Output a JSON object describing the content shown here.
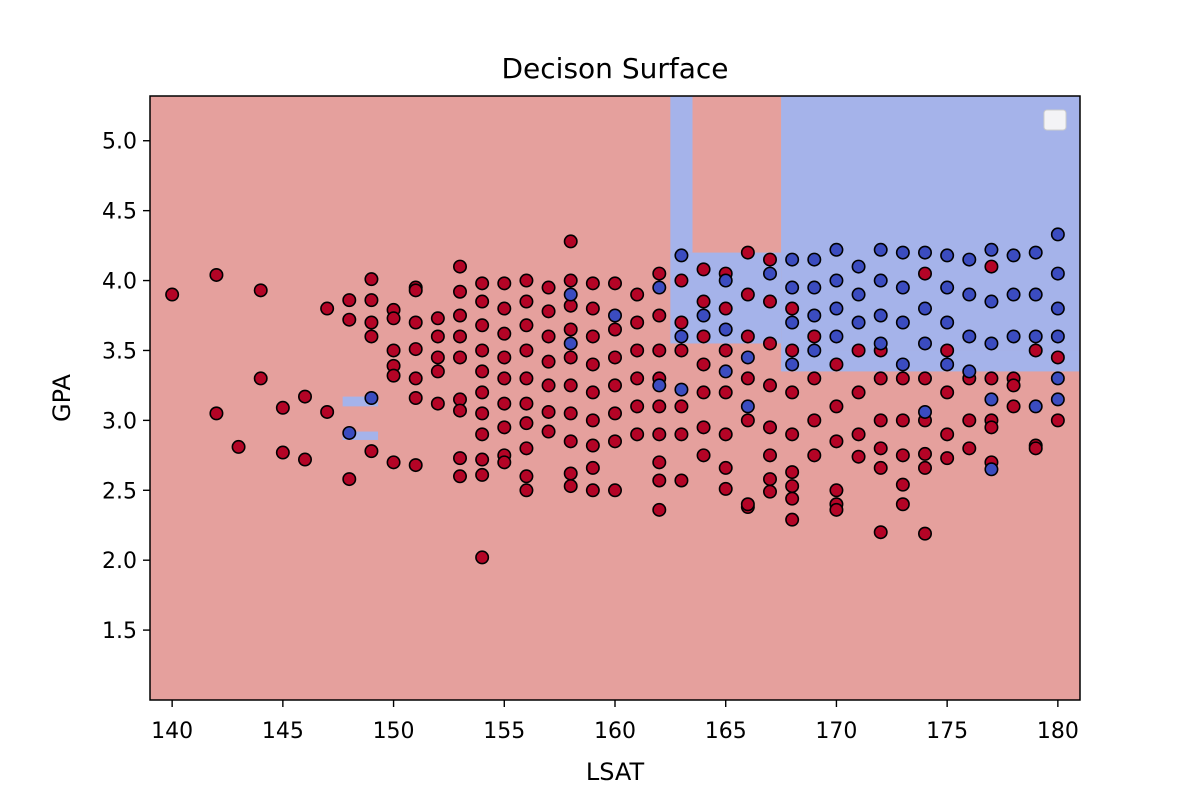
{
  "chart_data": {
    "type": "scatter",
    "title": "Decison Surface",
    "xlabel": "LSAT",
    "ylabel": "GPA",
    "xlim": [
      139,
      181
    ],
    "ylim": [
      1.0,
      5.32
    ],
    "xticks": [
      140,
      145,
      150,
      155,
      160,
      165,
      170,
      175,
      180
    ],
    "yticks": [
      1.5,
      2.0,
      2.5,
      3.0,
      3.5,
      4.0,
      4.5,
      5.0
    ],
    "xtick_labels": [
      "140",
      "145",
      "150",
      "155",
      "160",
      "165",
      "170",
      "175",
      "180"
    ],
    "ytick_labels": [
      "1.5",
      "2.0",
      "2.5",
      "3.0",
      "3.5",
      "4.0",
      "4.5",
      "5.0"
    ],
    "grid": false,
    "legend": {
      "placement": "top-right",
      "entries": []
    },
    "colors": {
      "region_negative": "#e5a09d",
      "region_positive": "#a5b3ea",
      "point_negative": "#b40426",
      "point_positive": "#3b4cc0",
      "point_edge": "#000000"
    },
    "decision_regions": [
      {
        "class": "positive",
        "x": [
          167.5,
          181
        ],
        "y": [
          3.5,
          5.32
        ]
      },
      {
        "class": "positive",
        "x": [
          167.5,
          181
        ],
        "y": [
          3.35,
          3.5
        ]
      },
      {
        "class": "positive",
        "x": [
          162.5,
          163.5
        ],
        "y": [
          4.2,
          5.32
        ]
      },
      {
        "class": "positive",
        "x": [
          147.7,
          149.3
        ],
        "y": [
          3.1,
          3.17
        ]
      },
      {
        "class": "positive",
        "x": [
          147.7,
          149.3
        ],
        "y": [
          2.86,
          2.92
        ]
      },
      {
        "class": "positive",
        "x": [
          162.5,
          167.5
        ],
        "y": [
          3.55,
          4.2
        ]
      }
    ],
    "series": [
      {
        "class": "negative",
        "points": [
          [
            140,
            3.9
          ],
          [
            142,
            4.04
          ],
          [
            142,
            3.05
          ],
          [
            143,
            2.81
          ],
          [
            144,
            3.93
          ],
          [
            144,
            3.3
          ],
          [
            145,
            3.09
          ],
          [
            145,
            2.77
          ],
          [
            146,
            3.17
          ],
          [
            146,
            2.72
          ],
          [
            147,
            3.8
          ],
          [
            147,
            3.06
          ],
          [
            148,
            3.86
          ],
          [
            148,
            3.72
          ],
          [
            148,
            2.58
          ],
          [
            149,
            4.01
          ],
          [
            149,
            3.86
          ],
          [
            149,
            3.7
          ],
          [
            149,
            3.6
          ],
          [
            149,
            2.78
          ],
          [
            150,
            3.79
          ],
          [
            150,
            3.73
          ],
          [
            150,
            3.5
          ],
          [
            150,
            3.39
          ],
          [
            150,
            3.32
          ],
          [
            150,
            2.7
          ],
          [
            151,
            3.95
          ],
          [
            151,
            3.93
          ],
          [
            151,
            3.7
          ],
          [
            151,
            3.51
          ],
          [
            151,
            3.3
          ],
          [
            151,
            3.16
          ],
          [
            151,
            2.68
          ],
          [
            152,
            3.73
          ],
          [
            152,
            3.6
          ],
          [
            152,
            3.45
          ],
          [
            152,
            3.35
          ],
          [
            152,
            3.12
          ],
          [
            153,
            4.1
          ],
          [
            153,
            3.92
          ],
          [
            153,
            3.75
          ],
          [
            153,
            3.6
          ],
          [
            153,
            3.45
          ],
          [
            153,
            3.15
          ],
          [
            153,
            3.07
          ],
          [
            153,
            2.73
          ],
          [
            153,
            2.6
          ],
          [
            154,
            3.98
          ],
          [
            154,
            3.85
          ],
          [
            154,
            3.68
          ],
          [
            154,
            3.5
          ],
          [
            154,
            3.35
          ],
          [
            154,
            3.2
          ],
          [
            154,
            3.05
          ],
          [
            154,
            2.9
          ],
          [
            154,
            2.72
          ],
          [
            154,
            2.61
          ],
          [
            154,
            2.02
          ],
          [
            155,
            3.98
          ],
          [
            155,
            3.8
          ],
          [
            155,
            3.62
          ],
          [
            155,
            3.45
          ],
          [
            155,
            3.3
          ],
          [
            155,
            3.12
          ],
          [
            155,
            2.95
          ],
          [
            155,
            2.75
          ],
          [
            155,
            2.7
          ],
          [
            156,
            4.0
          ],
          [
            156,
            3.85
          ],
          [
            156,
            3.68
          ],
          [
            156,
            3.5
          ],
          [
            156,
            3.3
          ],
          [
            156,
            3.12
          ],
          [
            156,
            2.98
          ],
          [
            156,
            2.8
          ],
          [
            156,
            2.6
          ],
          [
            156,
            2.5
          ],
          [
            157,
            3.95
          ],
          [
            157,
            3.78
          ],
          [
            157,
            3.6
          ],
          [
            157,
            3.42
          ],
          [
            157,
            3.25
          ],
          [
            157,
            3.06
          ],
          [
            157,
            2.92
          ],
          [
            158,
            4.28
          ],
          [
            158,
            4.0
          ],
          [
            158,
            3.82
          ],
          [
            158,
            3.65
          ],
          [
            158,
            3.45
          ],
          [
            158,
            3.25
          ],
          [
            158,
            3.05
          ],
          [
            158,
            2.85
          ],
          [
            158,
            2.62
          ],
          [
            158,
            2.53
          ],
          [
            159,
            3.98
          ],
          [
            159,
            3.8
          ],
          [
            159,
            3.6
          ],
          [
            159,
            3.4
          ],
          [
            159,
            3.2
          ],
          [
            159,
            3.0
          ],
          [
            159,
            2.82
          ],
          [
            159,
            2.66
          ],
          [
            159,
            2.5
          ],
          [
            160,
            3.98
          ],
          [
            160,
            3.65
          ],
          [
            160,
            3.45
          ],
          [
            160,
            3.25
          ],
          [
            160,
            3.05
          ],
          [
            160,
            2.85
          ],
          [
            160,
            2.5
          ],
          [
            161,
            3.9
          ],
          [
            161,
            3.7
          ],
          [
            161,
            3.5
          ],
          [
            161,
            3.3
          ],
          [
            161,
            3.1
          ],
          [
            161,
            2.9
          ],
          [
            162,
            4.05
          ],
          [
            162,
            3.75
          ],
          [
            162,
            3.5
          ],
          [
            162,
            3.3
          ],
          [
            162,
            3.1
          ],
          [
            162,
            2.9
          ],
          [
            162,
            2.7
          ],
          [
            162,
            2.57
          ],
          [
            162,
            2.36
          ],
          [
            163,
            4.0
          ],
          [
            163,
            3.7
          ],
          [
            163,
            3.5
          ],
          [
            163,
            3.1
          ],
          [
            163,
            2.9
          ],
          [
            163,
            2.57
          ],
          [
            164,
            4.08
          ],
          [
            164,
            3.85
          ],
          [
            164,
            3.6
          ],
          [
            164,
            3.4
          ],
          [
            164,
            3.2
          ],
          [
            164,
            2.95
          ],
          [
            164,
            2.75
          ],
          [
            165,
            4.05
          ],
          [
            165,
            3.8
          ],
          [
            165,
            3.5
          ],
          [
            165,
            3.2
          ],
          [
            165,
            2.9
          ],
          [
            165,
            2.66
          ],
          [
            165,
            2.51
          ],
          [
            166,
            4.2
          ],
          [
            166,
            3.9
          ],
          [
            166,
            3.6
          ],
          [
            166,
            3.3
          ],
          [
            166,
            3.0
          ],
          [
            166,
            2.38
          ],
          [
            166,
            2.4
          ],
          [
            167,
            4.15
          ],
          [
            167,
            3.85
          ],
          [
            167,
            3.55
          ],
          [
            167,
            3.25
          ],
          [
            167,
            2.95
          ],
          [
            167,
            2.75
          ],
          [
            167,
            2.58
          ],
          [
            167,
            2.49
          ],
          [
            168,
            3.8
          ],
          [
            168,
            3.5
          ],
          [
            168,
            3.2
          ],
          [
            168,
            2.9
          ],
          [
            168,
            2.63
          ],
          [
            168,
            2.53
          ],
          [
            168,
            2.44
          ],
          [
            168,
            2.29
          ],
          [
            169,
            3.6
          ],
          [
            169,
            3.3
          ],
          [
            169,
            3.0
          ],
          [
            169,
            2.75
          ],
          [
            170,
            3.4
          ],
          [
            170,
            3.1
          ],
          [
            170,
            2.85
          ],
          [
            170,
            2.5
          ],
          [
            170,
            2.4
          ],
          [
            170,
            2.36
          ],
          [
            171,
            3.5
          ],
          [
            171,
            3.2
          ],
          [
            171,
            2.9
          ],
          [
            171,
            2.74
          ],
          [
            172,
            3.5
          ],
          [
            172,
            3.3
          ],
          [
            172,
            3.0
          ],
          [
            172,
            2.8
          ],
          [
            172,
            2.66
          ],
          [
            172,
            2.2
          ],
          [
            173,
            3.3
          ],
          [
            173,
            3.0
          ],
          [
            173,
            2.75
          ],
          [
            173,
            2.54
          ],
          [
            173,
            2.4
          ],
          [
            174,
            4.05
          ],
          [
            174,
            3.3
          ],
          [
            174,
            3.0
          ],
          [
            174,
            2.76
          ],
          [
            174,
            2.66
          ],
          [
            174,
            2.19
          ],
          [
            175,
            3.5
          ],
          [
            175,
            3.2
          ],
          [
            175,
            2.9
          ],
          [
            175,
            2.73
          ],
          [
            176,
            3.3
          ],
          [
            176,
            3.0
          ],
          [
            176,
            2.8
          ],
          [
            177,
            4.1
          ],
          [
            177,
            3.3
          ],
          [
            177,
            3.0
          ],
          [
            177,
            2.95
          ],
          [
            177,
            2.7
          ],
          [
            178,
            3.3
          ],
          [
            178,
            3.25
          ],
          [
            178,
            3.1
          ],
          [
            179,
            3.5
          ],
          [
            179,
            2.82
          ],
          [
            179,
            2.8
          ],
          [
            180,
            3.45
          ],
          [
            180,
            3.0
          ]
        ]
      },
      {
        "class": "positive",
        "points": [
          [
            149,
            3.16
          ],
          [
            148,
            2.91
          ],
          [
            158,
            3.9
          ],
          [
            158,
            3.55
          ],
          [
            160,
            3.75
          ],
          [
            162,
            3.95
          ],
          [
            162,
            3.25
          ],
          [
            163,
            4.18
          ],
          [
            163,
            3.6
          ],
          [
            163,
            3.22
          ],
          [
            164,
            3.75
          ],
          [
            165,
            4.0
          ],
          [
            165,
            3.65
          ],
          [
            165,
            3.35
          ],
          [
            166,
            3.45
          ],
          [
            166,
            3.1
          ],
          [
            167,
            4.05
          ],
          [
            168,
            4.15
          ],
          [
            168,
            3.95
          ],
          [
            168,
            3.7
          ],
          [
            168,
            3.4
          ],
          [
            169,
            4.15
          ],
          [
            169,
            3.95
          ],
          [
            169,
            3.75
          ],
          [
            169,
            3.5
          ],
          [
            170,
            4.22
          ],
          [
            170,
            4.0
          ],
          [
            170,
            3.8
          ],
          [
            170,
            3.6
          ],
          [
            171,
            4.1
          ],
          [
            171,
            3.9
          ],
          [
            171,
            3.7
          ],
          [
            172,
            4.22
          ],
          [
            172,
            4.0
          ],
          [
            172,
            3.75
          ],
          [
            172,
            3.55
          ],
          [
            173,
            4.2
          ],
          [
            173,
            3.95
          ],
          [
            173,
            3.7
          ],
          [
            173,
            3.4
          ],
          [
            174,
            4.2
          ],
          [
            174,
            3.8
          ],
          [
            174,
            3.55
          ],
          [
            174,
            3.06
          ],
          [
            175,
            4.18
          ],
          [
            175,
            3.95
          ],
          [
            175,
            3.7
          ],
          [
            175,
            3.4
          ],
          [
            176,
            4.15
          ],
          [
            176,
            3.9
          ],
          [
            176,
            3.6
          ],
          [
            176,
            3.35
          ],
          [
            177,
            4.22
          ],
          [
            177,
            3.85
          ],
          [
            177,
            3.55
          ],
          [
            177,
            3.15
          ],
          [
            177,
            2.65
          ],
          [
            178,
            4.18
          ],
          [
            178,
            3.9
          ],
          [
            178,
            3.6
          ],
          [
            179,
            4.2
          ],
          [
            179,
            3.9
          ],
          [
            179,
            3.6
          ],
          [
            179,
            3.1
          ],
          [
            180,
            4.33
          ],
          [
            180,
            4.05
          ],
          [
            180,
            3.8
          ],
          [
            180,
            3.6
          ],
          [
            180,
            3.3
          ],
          [
            180,
            3.15
          ]
        ]
      }
    ]
  }
}
